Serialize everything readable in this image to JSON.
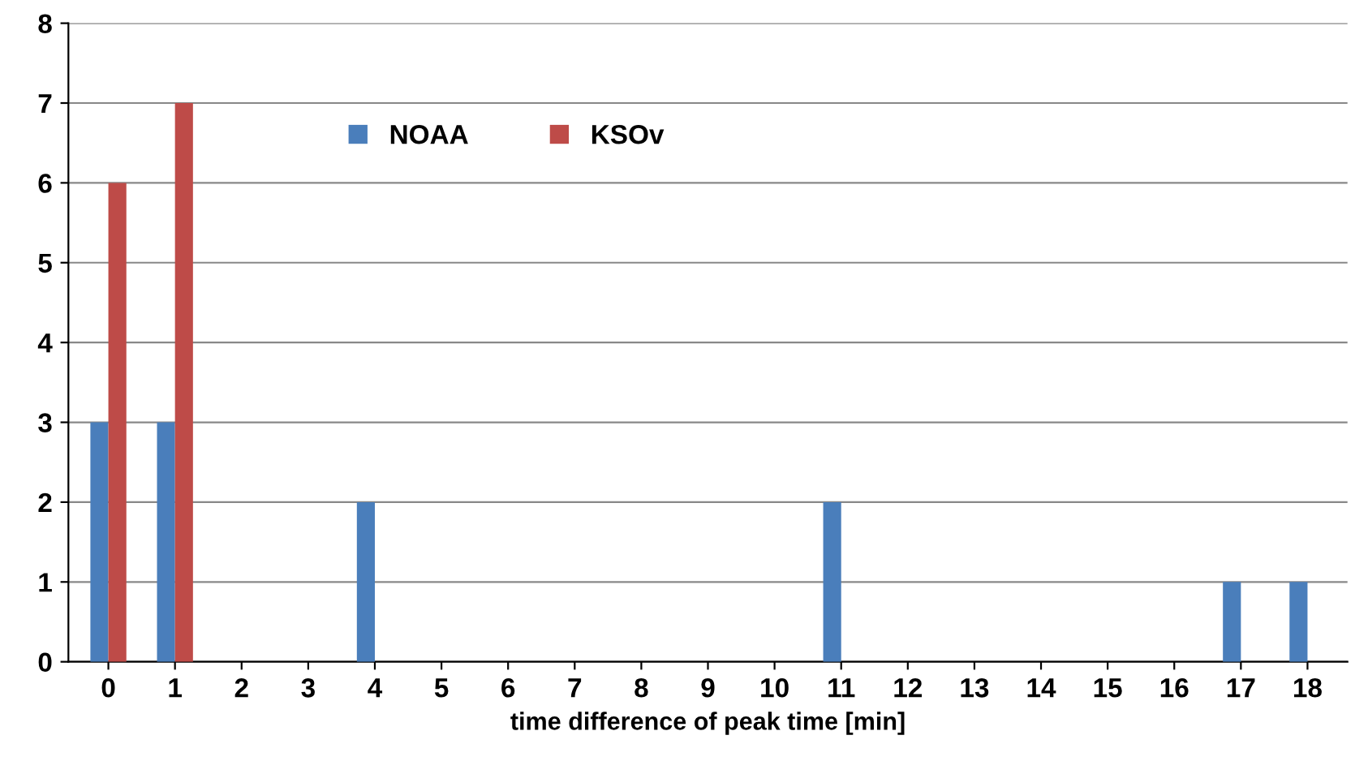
{
  "chart_data": {
    "type": "bar",
    "xlabel": "time difference of peak time [min]",
    "categories": [
      "0",
      "1",
      "2",
      "3",
      "4",
      "5",
      "6",
      "7",
      "8",
      "9",
      "10",
      "11",
      "12",
      "13",
      "14",
      "15",
      "16",
      "17",
      "18"
    ],
    "series": [
      {
        "name": "NOAA",
        "color": "#4a7ebb",
        "values": [
          3,
          3,
          0,
          0,
          2,
          0,
          0,
          0,
          0,
          0,
          0,
          2,
          0,
          0,
          0,
          0,
          0,
          1,
          1
        ]
      },
      {
        "name": "KSOv",
        "color": "#be4b48",
        "values": [
          6,
          7,
          0,
          0,
          0,
          0,
          0,
          0,
          0,
          0,
          0,
          0,
          0,
          0,
          0,
          0,
          0,
          0,
          0
        ]
      }
    ],
    "ylim": [
      0,
      8
    ],
    "yticks": [
      0,
      1,
      2,
      3,
      4,
      5,
      6,
      7,
      8
    ],
    "grid": "y",
    "legend": "top left"
  }
}
